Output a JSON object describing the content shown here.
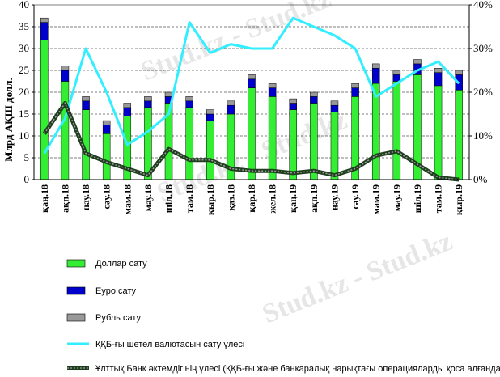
{
  "chart_data": {
    "type": "bar",
    "ylabel": "Млрд АҚШ долл.",
    "ylim": [
      0,
      40
    ],
    "y2lim": [
      0,
      40
    ],
    "y_ticks": [
      "0",
      "5",
      "10",
      "15",
      "20",
      "25",
      "30",
      "35",
      "40"
    ],
    "y2_ticks": [
      "0%",
      "10%",
      "20%",
      "30%",
      "40%"
    ],
    "categories": [
      "қаң.18",
      "ақп.18",
      "нау.18",
      "сәу.18",
      "мам.18",
      "мау.18",
      "шіл.18",
      "там.18",
      "қыр.18",
      "қаз.18",
      "қар.18",
      "жел.18",
      "қаң.19",
      "ақп.19",
      "нау.19",
      "сәу.19",
      "мам.19",
      "мау.19",
      "шіл.19",
      "там.19",
      "қыр.19"
    ],
    "series": [
      {
        "name": "Доллар сату",
        "type": "bar",
        "color": "#33ee33",
        "values": [
          32,
          22.5,
          16,
          10.5,
          14.5,
          16.5,
          17.5,
          16.5,
          13.5,
          15,
          21,
          19,
          16,
          17.5,
          15.5,
          19,
          22,
          22.5,
          24,
          21.5,
          20.5
        ]
      },
      {
        "name": "Еуро сату",
        "type": "bar",
        "color": "#0000cc",
        "values": [
          4,
          2.5,
          2,
          2,
          2,
          1.5,
          1.5,
          1.5,
          1.5,
          2,
          2,
          2,
          1.5,
          1.5,
          1.5,
          2,
          3.5,
          1.5,
          2.5,
          3,
          3.5
        ]
      },
      {
        "name": "Рубль сату",
        "type": "bar",
        "color": "#999999",
        "values": [
          1,
          1,
          1,
          1,
          1,
          1,
          1,
          1,
          1,
          1,
          1,
          1,
          1,
          1,
          1,
          1,
          1,
          1,
          1,
          1,
          1
        ]
      },
      {
        "name": "ҚҚБ-ғы шетел валютасын сату үлесі",
        "type": "line",
        "axis": "right",
        "color": "#33eeff",
        "values": [
          6,
          14,
          30,
          20,
          8,
          11,
          15,
          36,
          29,
          31,
          30,
          30,
          37,
          35,
          33,
          30,
          19,
          22,
          25,
          27,
          22
        ]
      },
      {
        "name": "Ұлттық Банк әктемдігінің үлесі (ҚҚБ-ғы және банкаралық нарықтағы операцияларды қоса алғанда)",
        "type": "line",
        "axis": "right",
        "color": "#2f5f2f",
        "values": [
          10.5,
          17.5,
          6,
          4,
          2.5,
          1,
          7,
          4.5,
          4.5,
          2.5,
          2,
          2,
          1.5,
          2,
          1,
          2.5,
          5.5,
          6.5,
          3.5,
          0.5,
          0
        ]
      }
    ],
    "gridlines": true,
    "legend_position": "bottom-left",
    "watermark": "Stud.kz - Stud.kz"
  }
}
